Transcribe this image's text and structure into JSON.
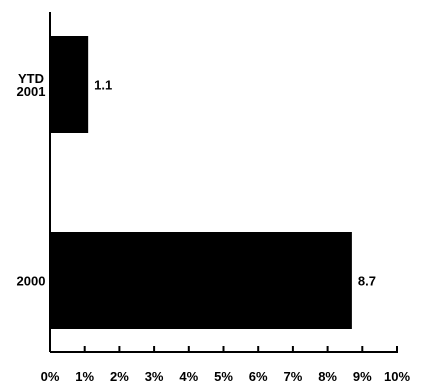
{
  "chart_data": {
    "type": "bar",
    "orientation": "horizontal",
    "categories": [
      "YTD 2001",
      "2000"
    ],
    "category_lines": [
      [
        "YTD",
        "2001"
      ],
      [
        "2000"
      ]
    ],
    "values": [
      1.1,
      8.7
    ],
    "value_labels": [
      "1.1",
      "8.7"
    ],
    "title": "",
    "xlabel": "",
    "ylabel": "",
    "xlim": [
      0,
      10
    ],
    "x_ticks": [
      0,
      1,
      2,
      3,
      4,
      5,
      6,
      7,
      8,
      9,
      10
    ],
    "x_tick_labels": [
      "0%",
      "1%",
      "2%",
      "3%",
      "4%",
      "5%",
      "6%",
      "7%",
      "8%",
      "9%",
      "10%"
    ],
    "grid": false,
    "legend": "none",
    "bar_color": "#000000",
    "axis_color": "#000000"
  }
}
